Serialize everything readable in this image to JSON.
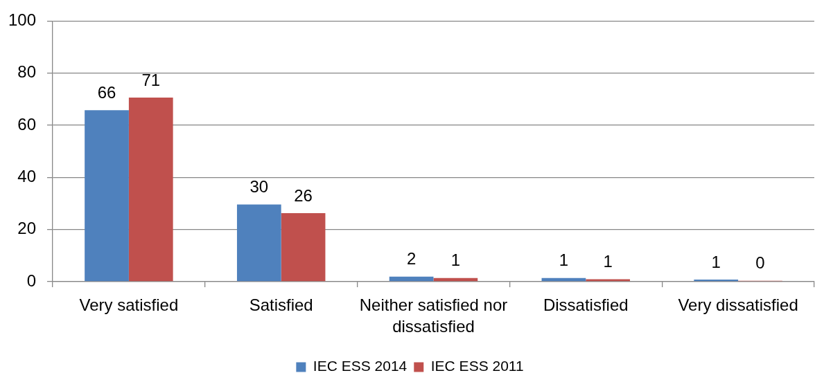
{
  "chart_data": {
    "type": "bar",
    "categories": [
      "Very satisfied",
      "Satisfied",
      "Neither satisfied nor dissatisfied",
      "Dissatisfied",
      "Very dissatisfied"
    ],
    "series": [
      {
        "name": "IEC ESS 2014",
        "color": "#4f81bd",
        "values": [
          65.8,
          29.6,
          1.9,
          1.4,
          0.8
        ],
        "value_labels": [
          "66",
          "30",
          "2",
          "1",
          "1"
        ]
      },
      {
        "name": "IEC ESS 2011",
        "color": "#c0504d",
        "values": [
          70.6,
          26.3,
          1.4,
          0.9,
          0.3
        ],
        "value_labels": [
          "71",
          "26",
          "1",
          "1",
          "0"
        ]
      }
    ],
    "ylim": [
      0,
      100
    ],
    "yticks": [
      0,
      20,
      40,
      60,
      80,
      100
    ],
    "grid": "y",
    "legend": "bottom"
  }
}
